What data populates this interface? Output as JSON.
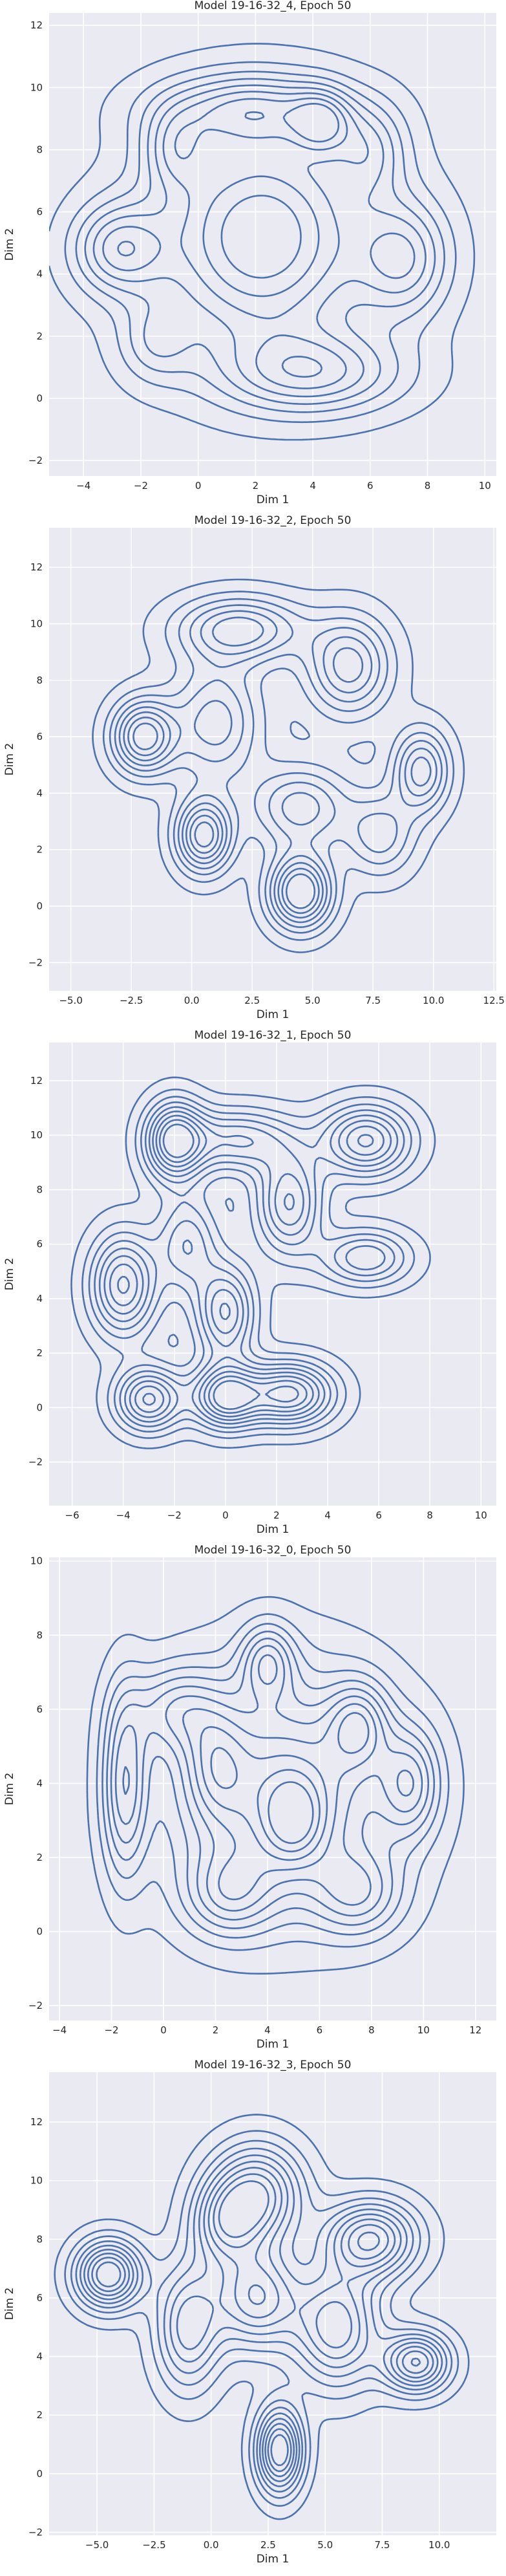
{
  "style": {
    "background": "#eaeaf2",
    "grid_color": "#ffffff",
    "line_color": "#4c72b0",
    "text_color": "#262626"
  },
  "chart_data": [
    {
      "type": "kde_contour",
      "title": "Model 19-16-32_4, Epoch 50",
      "xlabel": "Dim 1",
      "ylabel": "Dim 2",
      "xlim": [
        -5.2,
        10.4
      ],
      "ylim": [
        -2.5,
        12.4
      ],
      "xticks": [
        -4,
        -2,
        0,
        2,
        4,
        6,
        8,
        10
      ],
      "yticks": [
        -2,
        0,
        2,
        4,
        6,
        8,
        10,
        12
      ],
      "grid": true,
      "levels": 8,
      "modes": [
        {
          "x": 2.2,
          "y": 5.2,
          "sx": 2.6,
          "sy": 2.5,
          "w": 1.0
        },
        {
          "x": -2.8,
          "y": 4.8,
          "sx": 1.1,
          "sy": 1.0,
          "w": 0.6
        },
        {
          "x": 1.8,
          "y": 9.3,
          "sx": 2.2,
          "sy": 0.8,
          "w": 0.6
        },
        {
          "x": 4.0,
          "y": 0.8,
          "sx": 2.2,
          "sy": 0.9,
          "w": 0.6
        },
        {
          "x": 7.2,
          "y": 4.5,
          "sx": 1.1,
          "sy": 1.3,
          "w": 0.55
        },
        {
          "x": 4.3,
          "y": 8.9,
          "sx": 0.7,
          "sy": 0.7,
          "w": 0.5
        },
        {
          "x": -0.8,
          "y": 8.0,
          "sx": 0.8,
          "sy": 0.9,
          "w": 0.4
        },
        {
          "x": 6.0,
          "y": 8.0,
          "sx": 0.9,
          "sy": 1.0,
          "w": 0.4
        },
        {
          "x": -1.5,
          "y": 1.8,
          "sx": 0.9,
          "sy": 0.9,
          "w": 0.3
        }
      ]
    },
    {
      "type": "kde_contour",
      "title": "Model 19-16-32_2, Epoch 50",
      "xlabel": "Dim 1",
      "ylabel": "Dim 2",
      "xlim": [
        -5.9,
        12.6
      ],
      "ylim": [
        -3.0,
        13.4
      ],
      "xticks": [
        -5.0,
        -2.5,
        0.0,
        2.5,
        5.0,
        7.5,
        10.0,
        12.5
      ],
      "yticks": [
        -2,
        0,
        2,
        4,
        6,
        8,
        10,
        12
      ],
      "grid": true,
      "levels": 8,
      "modes": [
        {
          "x": -2.0,
          "y": 6.0,
          "sx": 0.9,
          "sy": 0.9,
          "w": 0.8
        },
        {
          "x": 0.5,
          "y": 2.5,
          "sx": 0.8,
          "sy": 0.9,
          "w": 0.8
        },
        {
          "x": 4.5,
          "y": 0.5,
          "sx": 0.9,
          "sy": 0.9,
          "w": 0.9
        },
        {
          "x": 2.0,
          "y": 9.8,
          "sx": 1.8,
          "sy": 0.8,
          "w": 0.6
        },
        {
          "x": 6.5,
          "y": 8.5,
          "sx": 1.2,
          "sy": 1.2,
          "w": 0.6
        },
        {
          "x": 9.5,
          "y": 4.8,
          "sx": 0.8,
          "sy": 1.0,
          "w": 0.6
        },
        {
          "x": 4.5,
          "y": 3.5,
          "sx": 1.4,
          "sy": 1.0,
          "w": 0.5
        },
        {
          "x": 1.0,
          "y": 6.5,
          "sx": 1.3,
          "sy": 1.5,
          "w": 0.5
        },
        {
          "x": 7.8,
          "y": 2.5,
          "sx": 1.0,
          "sy": 1.0,
          "w": 0.4
        }
      ]
    },
    {
      "type": "kde_contour",
      "title": "Model 19-16-32_1, Epoch 50",
      "xlabel": "Dim 1",
      "ylabel": "Dim 2",
      "xlim": [
        -6.9,
        10.6
      ],
      "ylim": [
        -3.6,
        13.4
      ],
      "xticks": [
        -6,
        -4,
        -2,
        0,
        2,
        4,
        6,
        8,
        10
      ],
      "yticks": [
        -2,
        0,
        2,
        4,
        6,
        8,
        10,
        12
      ],
      "grid": true,
      "levels": 9,
      "modes": [
        {
          "x": -2.0,
          "y": 9.8,
          "sx": 0.8,
          "sy": 1.0,
          "w": 0.8
        },
        {
          "x": -4.0,
          "y": 4.5,
          "sx": 0.9,
          "sy": 1.3,
          "w": 0.7
        },
        {
          "x": -3.0,
          "y": 0.3,
          "sx": 0.9,
          "sy": 0.8,
          "w": 0.7
        },
        {
          "x": 0.0,
          "y": 0.4,
          "sx": 0.9,
          "sy": 0.8,
          "w": 0.8
        },
        {
          "x": 2.5,
          "y": 0.5,
          "sx": 1.2,
          "sy": 0.8,
          "w": 0.8
        },
        {
          "x": 5.5,
          "y": 9.8,
          "sx": 1.2,
          "sy": 0.9,
          "w": 0.7
        },
        {
          "x": 2.5,
          "y": 7.5,
          "sx": 0.9,
          "sy": 1.3,
          "w": 0.6
        },
        {
          "x": 0.0,
          "y": 3.5,
          "sx": 0.8,
          "sy": 1.2,
          "w": 0.6
        },
        {
          "x": 5.5,
          "y": 5.5,
          "sx": 1.2,
          "sy": 0.7,
          "w": 0.5
        },
        {
          "x": 0.5,
          "y": 9.8,
          "sx": 1.5,
          "sy": 0.8,
          "w": 0.5
        },
        {
          "x": -1.5,
          "y": 6.0,
          "sx": 0.8,
          "sy": 1.2,
          "w": 0.4
        }
      ]
    },
    {
      "type": "kde_contour",
      "title": "Model 19-16-32_0, Epoch 50",
      "xlabel": "Dim 1",
      "ylabel": "Dim 2",
      "xlim": [
        -4.4,
        12.8
      ],
      "ylim": [
        -2.4,
        10.1
      ],
      "xticks": [
        -4,
        -2,
        0,
        2,
        4,
        6,
        8,
        10,
        12
      ],
      "yticks": [
        -2,
        0,
        2,
        4,
        6,
        8,
        10
      ],
      "grid": true,
      "levels": 10,
      "modes": [
        {
          "x": 4.5,
          "y": 3.8,
          "sx": 3.0,
          "sy": 2.2,
          "w": 1.0
        },
        {
          "x": -1.5,
          "y": 4.0,
          "sx": 0.6,
          "sy": 1.8,
          "w": 0.7
        },
        {
          "x": 0.5,
          "y": 6.0,
          "sx": 1.2,
          "sy": 0.8,
          "w": 0.5
        },
        {
          "x": 4.0,
          "y": 7.3,
          "sx": 0.7,
          "sy": 0.7,
          "w": 0.6
        },
        {
          "x": 7.5,
          "y": 5.6,
          "sx": 0.8,
          "sy": 0.8,
          "w": 0.6
        },
        {
          "x": 9.5,
          "y": 4.0,
          "sx": 0.8,
          "sy": 1.0,
          "w": 0.6
        },
        {
          "x": 5.0,
          "y": 3.0,
          "sx": 0.8,
          "sy": 0.8,
          "w": 0.5
        },
        {
          "x": 2.5,
          "y": 1.0,
          "sx": 1.2,
          "sy": 0.8,
          "w": 0.5
        },
        {
          "x": 7.5,
          "y": 1.0,
          "sx": 1.2,
          "sy": 0.8,
          "w": 0.5
        },
        {
          "x": 2.0,
          "y": 4.5,
          "sx": 0.8,
          "sy": 1.0,
          "w": 0.4
        }
      ]
    },
    {
      "type": "kde_contour",
      "title": "Model 19-16-32_3, Epoch 50",
      "xlabel": "Dim 1",
      "ylabel": "Dim 2",
      "xlim": [
        -7.1,
        12.5
      ],
      "ylim": [
        -2.1,
        13.7
      ],
      "xticks": [
        -5.0,
        -2.5,
        0.0,
        2.5,
        5.0,
        7.5,
        10.0
      ],
      "yticks": [
        -2,
        0,
        2,
        4,
        6,
        8,
        10,
        12
      ],
      "grid": true,
      "levels": 9,
      "modes": [
        {
          "x": -4.5,
          "y": 6.8,
          "sx": 1.0,
          "sy": 0.8,
          "w": 0.8
        },
        {
          "x": 3.0,
          "y": 0.8,
          "sx": 0.7,
          "sy": 1.0,
          "w": 0.8
        },
        {
          "x": 2.0,
          "y": 9.5,
          "sx": 1.4,
          "sy": 1.2,
          "w": 0.7
        },
        {
          "x": 7.0,
          "y": 8.0,
          "sx": 1.4,
          "sy": 0.9,
          "w": 0.7
        },
        {
          "x": 9.0,
          "y": 3.8,
          "sx": 1.0,
          "sy": 0.7,
          "w": 0.7
        },
        {
          "x": 2.0,
          "y": 6.0,
          "sx": 1.3,
          "sy": 1.2,
          "w": 0.6
        },
        {
          "x": -1.0,
          "y": 5.0,
          "sx": 1.0,
          "sy": 1.5,
          "w": 0.5
        },
        {
          "x": 5.5,
          "y": 5.0,
          "sx": 1.3,
          "sy": 1.4,
          "w": 0.6
        },
        {
          "x": 0.5,
          "y": 8.5,
          "sx": 1.0,
          "sy": 1.0,
          "w": 0.4
        }
      ]
    }
  ]
}
